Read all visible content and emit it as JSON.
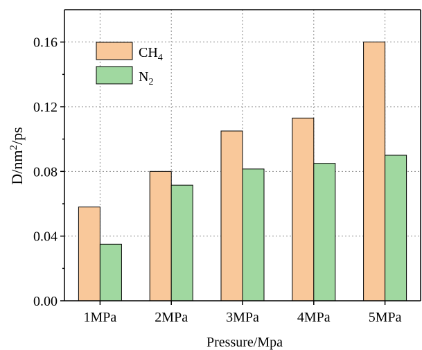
{
  "chart_data": {
    "type": "bar",
    "title": "",
    "xlabel": "Pressure/Mpa",
    "ylabel_parts": {
      "base": "D/nm",
      "sup": "2",
      "tail": "/ps"
    },
    "categories": [
      "1MPa",
      "2MPa",
      "3MPa",
      "4MPa",
      "5MPa"
    ],
    "series": [
      {
        "name_base": "CH",
        "name_sub": "4",
        "color": "#F9C89A",
        "values": [
          0.058,
          0.08,
          0.105,
          0.113,
          0.16
        ]
      },
      {
        "name_base": "N",
        "name_sub": "2",
        "color": "#A0D8A0",
        "values": [
          0.035,
          0.0715,
          0.0815,
          0.085,
          0.09
        ]
      }
    ],
    "ylim": [
      0,
      0.18
    ],
    "yticks": [
      "0.00",
      "0.04",
      "0.08",
      "0.12",
      "0.16"
    ],
    "grid": true,
    "legend_position": "top-left"
  }
}
